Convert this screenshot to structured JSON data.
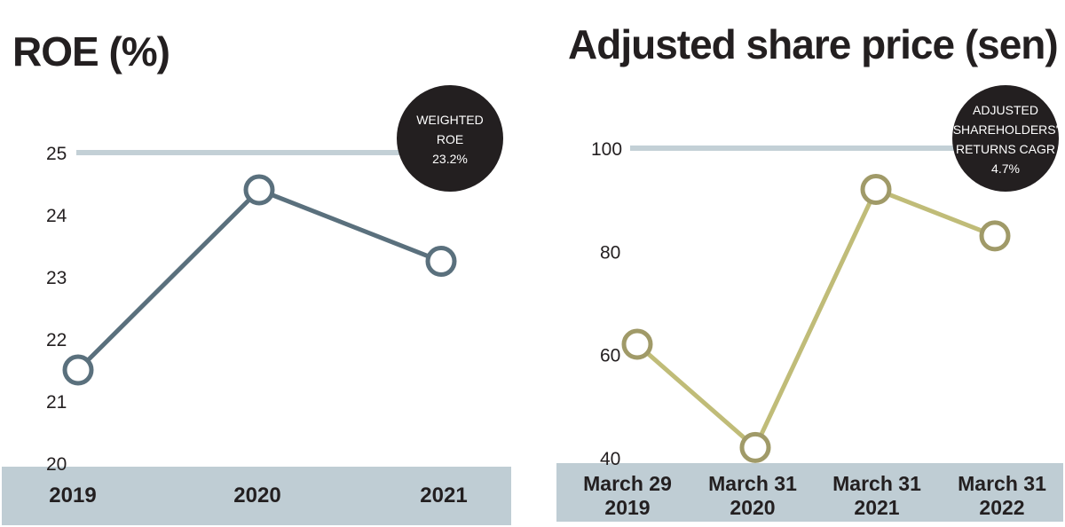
{
  "chart_data": [
    {
      "type": "line",
      "title": "ROE (%)",
      "categories": [
        "2019",
        "2020",
        "2021"
      ],
      "values": [
        21.5,
        24.4,
        23.25
      ],
      "yticks": [
        "20",
        "21",
        "22",
        "23",
        "24",
        "25"
      ],
      "ylim": [
        20,
        25
      ],
      "reference_value": 25,
      "badge": [
        "WEIGHTED",
        "ROE",
        "23.2%"
      ],
      "colors": {
        "line": "#5a707d",
        "reference": "#c3d0d6",
        "axis_band": "#bfcdd4",
        "badge": "#231f20"
      }
    },
    {
      "type": "line",
      "title": "Adjusted share price (sen)",
      "categories": [
        [
          "March 29",
          "2019"
        ],
        [
          "March 31",
          "2020"
        ],
        [
          "March 31",
          "2021"
        ],
        [
          "March 31",
          "2022"
        ]
      ],
      "values": [
        62,
        42,
        92,
        83
      ],
      "yticks": [
        "40",
        "60",
        "80",
        "100"
      ],
      "ylim": [
        40,
        100
      ],
      "reference_value": 100,
      "badge": [
        "ADJUSTED",
        "SHAREHOLDERS'",
        "RETURNS CAGR",
        "4.7%"
      ],
      "colors": {
        "line": "#c0bc78",
        "marker": "#a09a68",
        "reference": "#c3d0d6",
        "axis_band": "#bfcdd4",
        "badge": "#231f20"
      }
    }
  ]
}
